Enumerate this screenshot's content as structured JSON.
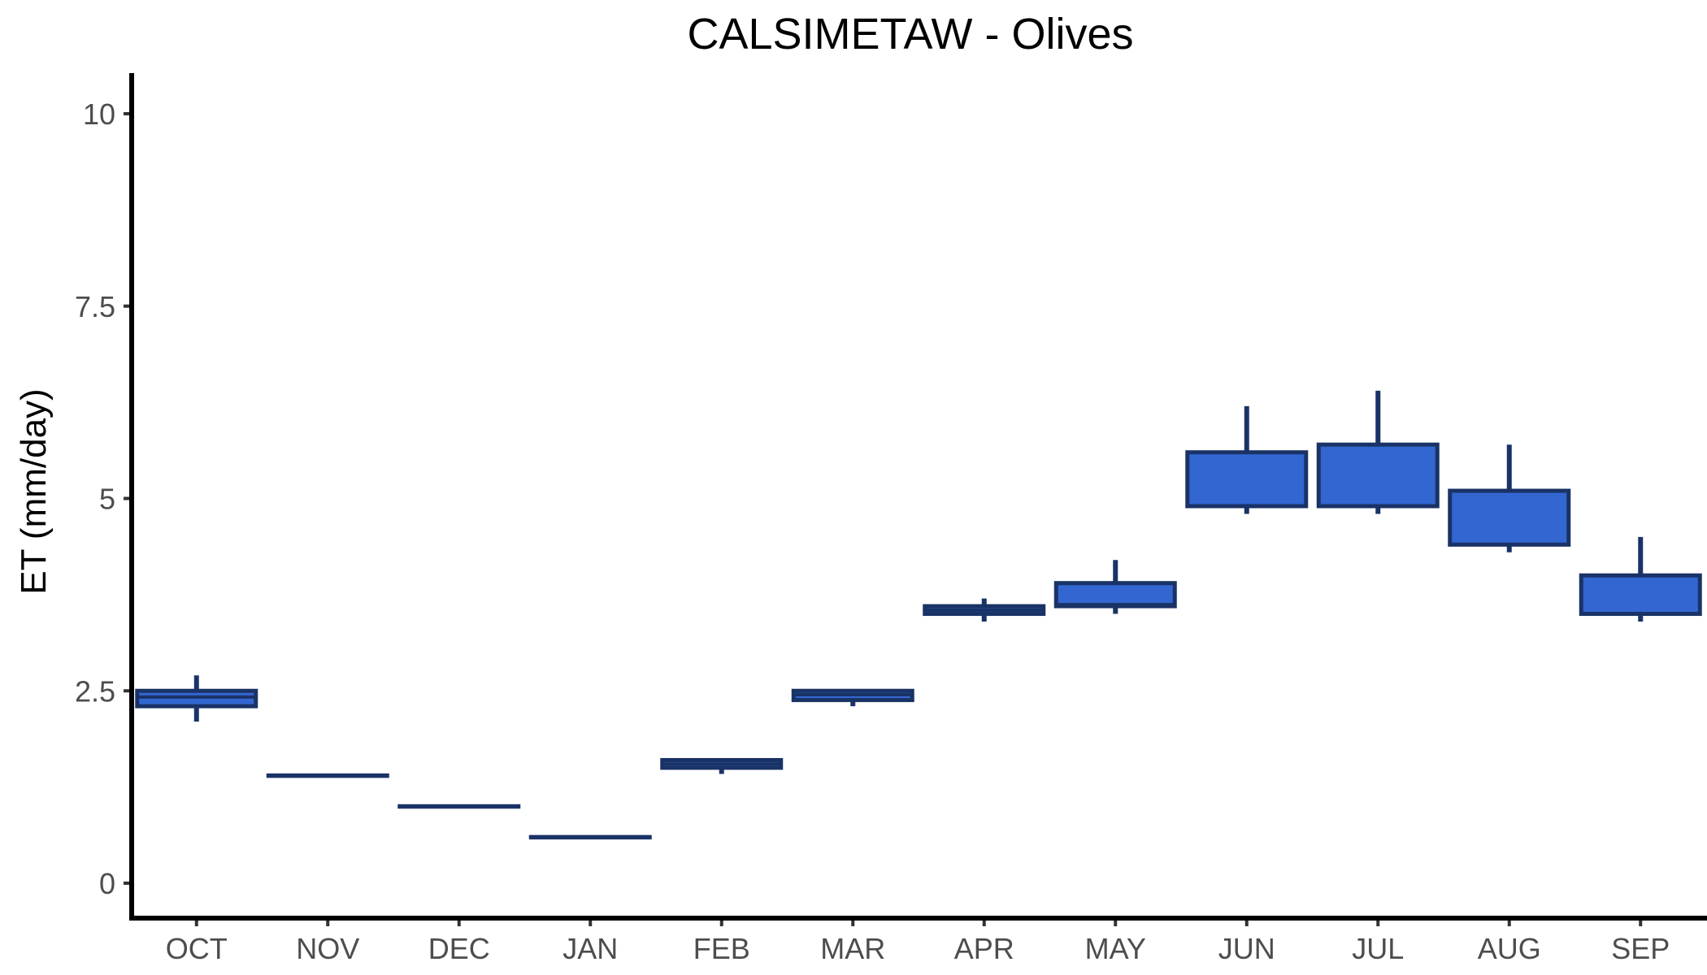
{
  "chart_data": {
    "type": "boxplot",
    "title": "CALSIMETAW - Olives",
    "xlabel": "",
    "ylabel": "ET (mm/day)",
    "ylim": [
      -0.45,
      10.5
    ],
    "yticks": [
      0,
      2.5,
      5,
      7.5,
      10
    ],
    "ytick_labels": [
      "0",
      "2.5",
      "5",
      "7.5",
      "10"
    ],
    "categories": [
      "OCT",
      "NOV",
      "DEC",
      "JAN",
      "FEB",
      "MAR",
      "APR",
      "MAY",
      "JUN",
      "JUL",
      "AUG",
      "SEP"
    ],
    "boxes": [
      {
        "category": "OCT",
        "min": 2.1,
        "q1": 2.3,
        "median": 2.42,
        "q3": 2.5,
        "max": 2.7
      },
      {
        "category": "NOV",
        "min": 1.4,
        "q1": 1.4,
        "median": 1.4,
        "q3": 1.4,
        "max": 1.4
      },
      {
        "category": "DEC",
        "min": 1.0,
        "q1": 1.0,
        "median": 1.0,
        "q3": 1.0,
        "max": 1.0
      },
      {
        "category": "JAN",
        "min": 0.6,
        "q1": 0.6,
        "median": 0.6,
        "q3": 0.6,
        "max": 0.6
      },
      {
        "category": "FEB",
        "min": 1.42,
        "q1": 1.5,
        "median": 1.55,
        "q3": 1.6,
        "max": 1.62
      },
      {
        "category": "MAR",
        "min": 2.3,
        "q1": 2.38,
        "median": 2.45,
        "q3": 2.5,
        "max": 2.5
      },
      {
        "category": "APR",
        "min": 3.4,
        "q1": 3.5,
        "median": 3.55,
        "q3": 3.6,
        "max": 3.7
      },
      {
        "category": "MAY",
        "min": 3.5,
        "q1": 3.6,
        "median": 3.62,
        "q3": 3.9,
        "max": 4.2
      },
      {
        "category": "JUN",
        "min": 4.8,
        "q1": 4.9,
        "median": 4.9,
        "q3": 5.6,
        "max": 6.2
      },
      {
        "category": "JUL",
        "min": 4.8,
        "q1": 4.9,
        "median": 4.9,
        "q3": 5.7,
        "max": 6.4
      },
      {
        "category": "AUG",
        "min": 4.3,
        "q1": 4.4,
        "median": 4.4,
        "q3": 5.1,
        "max": 5.7
      },
      {
        "category": "SEP",
        "min": 3.4,
        "q1": 3.5,
        "median": 3.5,
        "q3": 4.0,
        "max": 4.5
      }
    ],
    "colors": {
      "box_fill": "#3366d1",
      "box_outline": "#1a3366",
      "axis": "#000000",
      "tick_text": "#4d4d4d"
    },
    "grid": false,
    "legend": "none"
  }
}
